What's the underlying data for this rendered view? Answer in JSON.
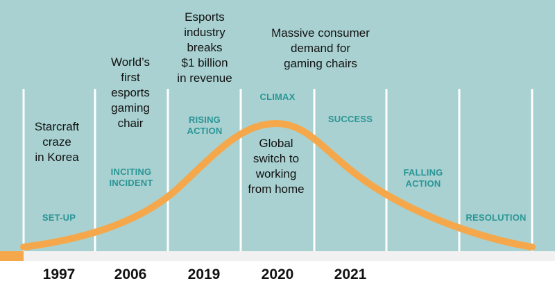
{
  "colors": {
    "background": "#a9d1d1",
    "curve": "#f5a84b",
    "stage_text": "#2a9595",
    "divider": "#ffffff",
    "text": "#111111"
  },
  "stages": [
    {
      "label": "SET-UP"
    },
    {
      "label": "INCITING\nINCIDENT"
    },
    {
      "label": "RISING\nACTION"
    },
    {
      "label": "CLIMAX"
    },
    {
      "label": "SUCCESS"
    },
    {
      "label": "FALLING\nACTION"
    },
    {
      "label": "RESOLUTION"
    }
  ],
  "events": [
    {
      "text": "Starcraft\ncraze\nin Korea"
    },
    {
      "text": "World’s\nfirst\nesports\ngaming\nchair"
    },
    {
      "text": "Esports\nindustry\nbreaks\n$1 billion\nin revenue"
    },
    {
      "text": "Massive consumer\ndemand for\ngaming chairs"
    },
    {
      "text": "Global\nswitch to\nworking\nfrom home"
    }
  ],
  "years": [
    "1997",
    "2006",
    "2019",
    "2020",
    "2021"
  ]
}
